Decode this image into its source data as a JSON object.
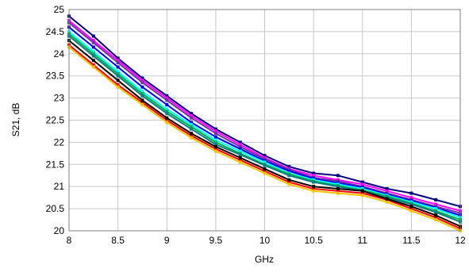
{
  "chart_data": {
    "type": "line",
    "title": "",
    "xlabel": "GHz",
    "ylabel": "S21, dB",
    "xlim": [
      8,
      12
    ],
    "ylim": [
      20,
      25
    ],
    "x_ticks": [
      "8",
      "8.5",
      "9",
      "9.5",
      "10",
      "10.5",
      "11",
      "11.5",
      "12"
    ],
    "y_ticks": [
      "20",
      "20.5",
      "21",
      "21.5",
      "22",
      "22.5",
      "23",
      "23.5",
      "24",
      "24.5",
      "25"
    ],
    "grid": true,
    "legend": "none",
    "x": [
      8.0,
      8.25,
      8.5,
      8.75,
      9.0,
      9.25,
      9.5,
      9.75,
      10.0,
      10.25,
      10.5,
      10.75,
      11.0,
      11.25,
      11.5,
      11.75,
      12.0
    ],
    "series": [
      {
        "color": "#000080",
        "values": [
          24.85,
          24.4,
          23.9,
          23.45,
          23.05,
          22.65,
          22.3,
          22.0,
          21.7,
          21.45,
          21.3,
          21.25,
          21.1,
          20.95,
          20.85,
          20.7,
          20.55
        ]
      },
      {
        "color": "#ff00ff",
        "values": [
          24.75,
          24.3,
          23.85,
          23.4,
          23.0,
          22.6,
          22.25,
          21.95,
          21.65,
          21.4,
          21.25,
          21.15,
          21.05,
          20.9,
          20.75,
          20.6,
          20.45
        ]
      },
      {
        "color": "#7030a0",
        "values": [
          24.7,
          24.25,
          23.8,
          23.35,
          22.95,
          22.55,
          22.2,
          21.9,
          21.62,
          21.38,
          21.2,
          21.12,
          21.0,
          20.85,
          20.7,
          20.55,
          20.4
        ]
      },
      {
        "color": "#0000ff",
        "values": [
          24.6,
          24.15,
          23.7,
          23.25,
          22.85,
          22.45,
          22.12,
          21.85,
          21.58,
          21.35,
          21.18,
          21.08,
          20.98,
          20.82,
          20.68,
          20.52,
          20.35
        ]
      },
      {
        "color": "#00ffff",
        "values": [
          24.5,
          24.05,
          23.6,
          23.15,
          22.75,
          22.4,
          22.05,
          21.8,
          21.55,
          21.3,
          21.15,
          21.05,
          20.95,
          20.8,
          20.65,
          20.5,
          20.3
        ]
      },
      {
        "color": "#00b050",
        "values": [
          24.45,
          24.0,
          23.55,
          23.1,
          22.7,
          22.35,
          22.0,
          21.75,
          21.5,
          21.28,
          21.12,
          21.02,
          20.92,
          20.78,
          20.62,
          20.45,
          20.25
        ]
      },
      {
        "color": "#008080",
        "values": [
          24.4,
          23.95,
          23.5,
          23.05,
          22.65,
          22.3,
          21.95,
          21.72,
          21.48,
          21.25,
          21.1,
          21.0,
          20.9,
          20.75,
          20.6,
          20.42,
          20.2
        ]
      },
      {
        "color": "#ff0000",
        "values": [
          24.2,
          23.75,
          23.3,
          22.9,
          22.5,
          22.15,
          21.85,
          21.6,
          21.35,
          21.1,
          20.95,
          20.9,
          20.85,
          20.7,
          20.5,
          20.3,
          20.05
        ]
      },
      {
        "color": "#ffc000",
        "values": [
          24.15,
          23.7,
          23.25,
          22.85,
          22.45,
          22.1,
          21.8,
          21.55,
          21.3,
          21.05,
          20.9,
          20.85,
          20.8,
          20.65,
          20.45,
          20.25,
          20.0
        ]
      },
      {
        "color": "#000000",
        "values": [
          24.3,
          23.85,
          23.4,
          22.95,
          22.55,
          22.2,
          21.9,
          21.65,
          21.4,
          21.15,
          21.0,
          20.95,
          20.9,
          20.72,
          20.55,
          20.35,
          20.1
        ]
      }
    ]
  }
}
